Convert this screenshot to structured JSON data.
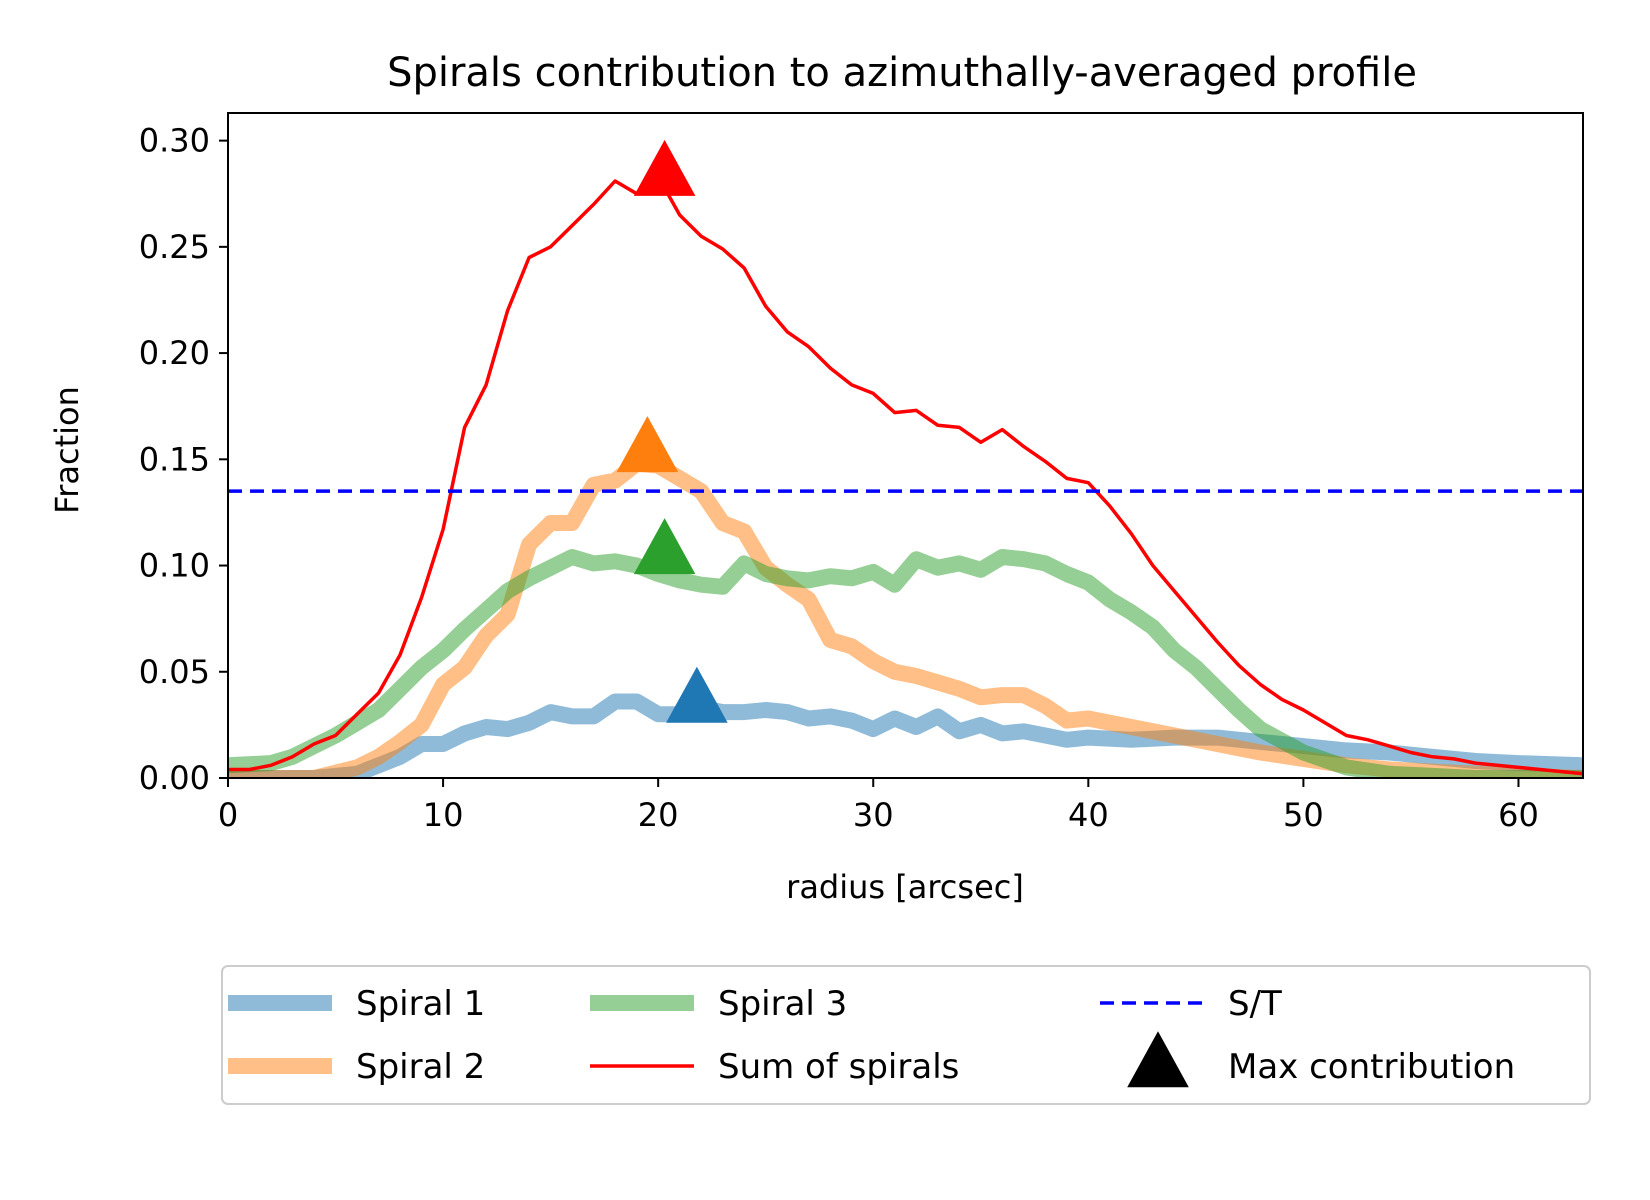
{
  "chart_data": {
    "type": "line",
    "title": "Spirals contribution to azimuthally-averaged profile",
    "xlabel": "radius [arcsec]",
    "ylabel": "Fraction",
    "xlim": [
      0,
      63
    ],
    "ylim": [
      0,
      0.313
    ],
    "xticks": [
      "0",
      "10",
      "20",
      "30",
      "40",
      "50",
      "60"
    ],
    "yticks": [
      "0.00",
      "0.05",
      "0.10",
      "0.15",
      "0.20",
      "0.25",
      "0.30"
    ],
    "grid": false,
    "legend_position": "bottom-center",
    "series": [
      {
        "name": "Spiral 1",
        "color": "#1f77b4",
        "style": "thick-translucent",
        "x": [
          0,
          2,
          4,
          6,
          7,
          8,
          9,
          10,
          11,
          12,
          13,
          14,
          15,
          16,
          17,
          18,
          19,
          20,
          21,
          22,
          23,
          24,
          25,
          26,
          27,
          28,
          29,
          30,
          31,
          32,
          33,
          34,
          35,
          36,
          37,
          38,
          39,
          40,
          42,
          44,
          46,
          48,
          50,
          52,
          54,
          56,
          58,
          60,
          63
        ],
        "y": [
          0.0,
          0.0,
          0.0,
          0.002,
          0.006,
          0.01,
          0.016,
          0.016,
          0.021,
          0.024,
          0.023,
          0.026,
          0.031,
          0.029,
          0.029,
          0.036,
          0.036,
          0.03,
          0.03,
          0.033,
          0.031,
          0.031,
          0.032,
          0.031,
          0.028,
          0.029,
          0.027,
          0.023,
          0.028,
          0.024,
          0.029,
          0.022,
          0.025,
          0.021,
          0.022,
          0.02,
          0.018,
          0.019,
          0.018,
          0.019,
          0.019,
          0.017,
          0.015,
          0.013,
          0.012,
          0.01,
          0.008,
          0.007,
          0.006
        ]
      },
      {
        "name": "Spiral 2",
        "color": "#ff7f0e",
        "style": "thick-translucent",
        "x": [
          0,
          2,
          4,
          6,
          7,
          8,
          9,
          10,
          11,
          12,
          13,
          14,
          15,
          16,
          17,
          18,
          19,
          20,
          21,
          22,
          23,
          24,
          25,
          26,
          27,
          28,
          29,
          30,
          31,
          32,
          33,
          34,
          35,
          36,
          37,
          38,
          39,
          40,
          42,
          44,
          46,
          48,
          50,
          52,
          54,
          56,
          58,
          60,
          63
        ],
        "y": [
          0.0,
          0.0,
          0.0,
          0.005,
          0.01,
          0.017,
          0.025,
          0.044,
          0.052,
          0.067,
          0.077,
          0.11,
          0.12,
          0.12,
          0.138,
          0.14,
          0.148,
          0.147,
          0.141,
          0.135,
          0.12,
          0.116,
          0.099,
          0.091,
          0.084,
          0.065,
          0.062,
          0.055,
          0.05,
          0.048,
          0.045,
          0.042,
          0.038,
          0.039,
          0.039,
          0.034,
          0.027,
          0.028,
          0.024,
          0.02,
          0.016,
          0.012,
          0.009,
          0.006,
          0.004,
          0.003,
          0.002,
          0.001,
          0.0
        ]
      },
      {
        "name": "Spiral 3",
        "color": "#2ca02c",
        "style": "thick-translucent",
        "x": [
          0,
          2,
          3,
          4,
          5,
          6,
          7,
          8,
          9,
          10,
          11,
          12,
          13,
          14,
          15,
          16,
          17,
          18,
          19,
          20,
          21,
          22,
          23,
          24,
          25,
          26,
          27,
          28,
          29,
          30,
          31,
          32,
          33,
          34,
          35,
          36,
          37,
          38,
          39,
          40,
          41,
          42,
          43,
          44,
          45,
          46,
          47,
          48,
          50,
          52,
          54,
          56,
          58,
          60,
          63
        ],
        "y": [
          0.006,
          0.007,
          0.01,
          0.015,
          0.02,
          0.026,
          0.032,
          0.042,
          0.052,
          0.06,
          0.07,
          0.079,
          0.088,
          0.094,
          0.099,
          0.104,
          0.101,
          0.102,
          0.1,
          0.096,
          0.093,
          0.091,
          0.09,
          0.101,
          0.096,
          0.094,
          0.093,
          0.095,
          0.094,
          0.097,
          0.091,
          0.103,
          0.099,
          0.101,
          0.098,
          0.104,
          0.103,
          0.101,
          0.096,
          0.092,
          0.084,
          0.078,
          0.071,
          0.06,
          0.052,
          0.042,
          0.032,
          0.023,
          0.012,
          0.005,
          0.002,
          0.001,
          0.0,
          0.0,
          0.0
        ]
      },
      {
        "name": "Sum of spirals",
        "color": "#ff0000",
        "style": "thin",
        "x": [
          0,
          1,
          2,
          3,
          4,
          5,
          6,
          7,
          8,
          9,
          10,
          11,
          12,
          13,
          14,
          15,
          16,
          17,
          18,
          19,
          20,
          21,
          22,
          23,
          24,
          25,
          26,
          27,
          28,
          29,
          30,
          31,
          32,
          33,
          34,
          35,
          36,
          37,
          38,
          39,
          40,
          41,
          42,
          43,
          44,
          45,
          46,
          47,
          48,
          49,
          50,
          51,
          52,
          53,
          54,
          55,
          56,
          57,
          58,
          59,
          60,
          61,
          62,
          63
        ],
        "y": [
          0.004,
          0.004,
          0.006,
          0.01,
          0.016,
          0.02,
          0.03,
          0.04,
          0.058,
          0.085,
          0.117,
          0.165,
          0.185,
          0.22,
          0.245,
          0.25,
          0.26,
          0.27,
          0.281,
          0.275,
          0.283,
          0.265,
          0.255,
          0.249,
          0.24,
          0.222,
          0.21,
          0.203,
          0.193,
          0.185,
          0.181,
          0.172,
          0.173,
          0.166,
          0.165,
          0.158,
          0.164,
          0.156,
          0.149,
          0.141,
          0.139,
          0.128,
          0.115,
          0.1,
          0.088,
          0.076,
          0.064,
          0.053,
          0.044,
          0.037,
          0.032,
          0.026,
          0.02,
          0.018,
          0.015,
          0.012,
          0.01,
          0.009,
          0.007,
          0.006,
          0.005,
          0.004,
          0.003,
          0.002
        ]
      }
    ],
    "st_line": {
      "name": "S/T",
      "color": "#0000ff",
      "value": 0.135,
      "style": "dashed"
    },
    "max_markers": {
      "name": "Max contribution",
      "legend_color": "#000000",
      "points": [
        {
          "series": "Spiral 1",
          "x": 21.8,
          "y": 0.036,
          "color": "#1f77b4"
        },
        {
          "series": "Spiral 2",
          "x": 19.5,
          "y": 0.154,
          "color": "#ff7f0e"
        },
        {
          "series": "Spiral 3",
          "x": 20.3,
          "y": 0.106,
          "color": "#2ca02c"
        },
        {
          "series": "Sum of spirals",
          "x": 20.3,
          "y": 0.284,
          "color": "#ff0000"
        }
      ]
    }
  }
}
